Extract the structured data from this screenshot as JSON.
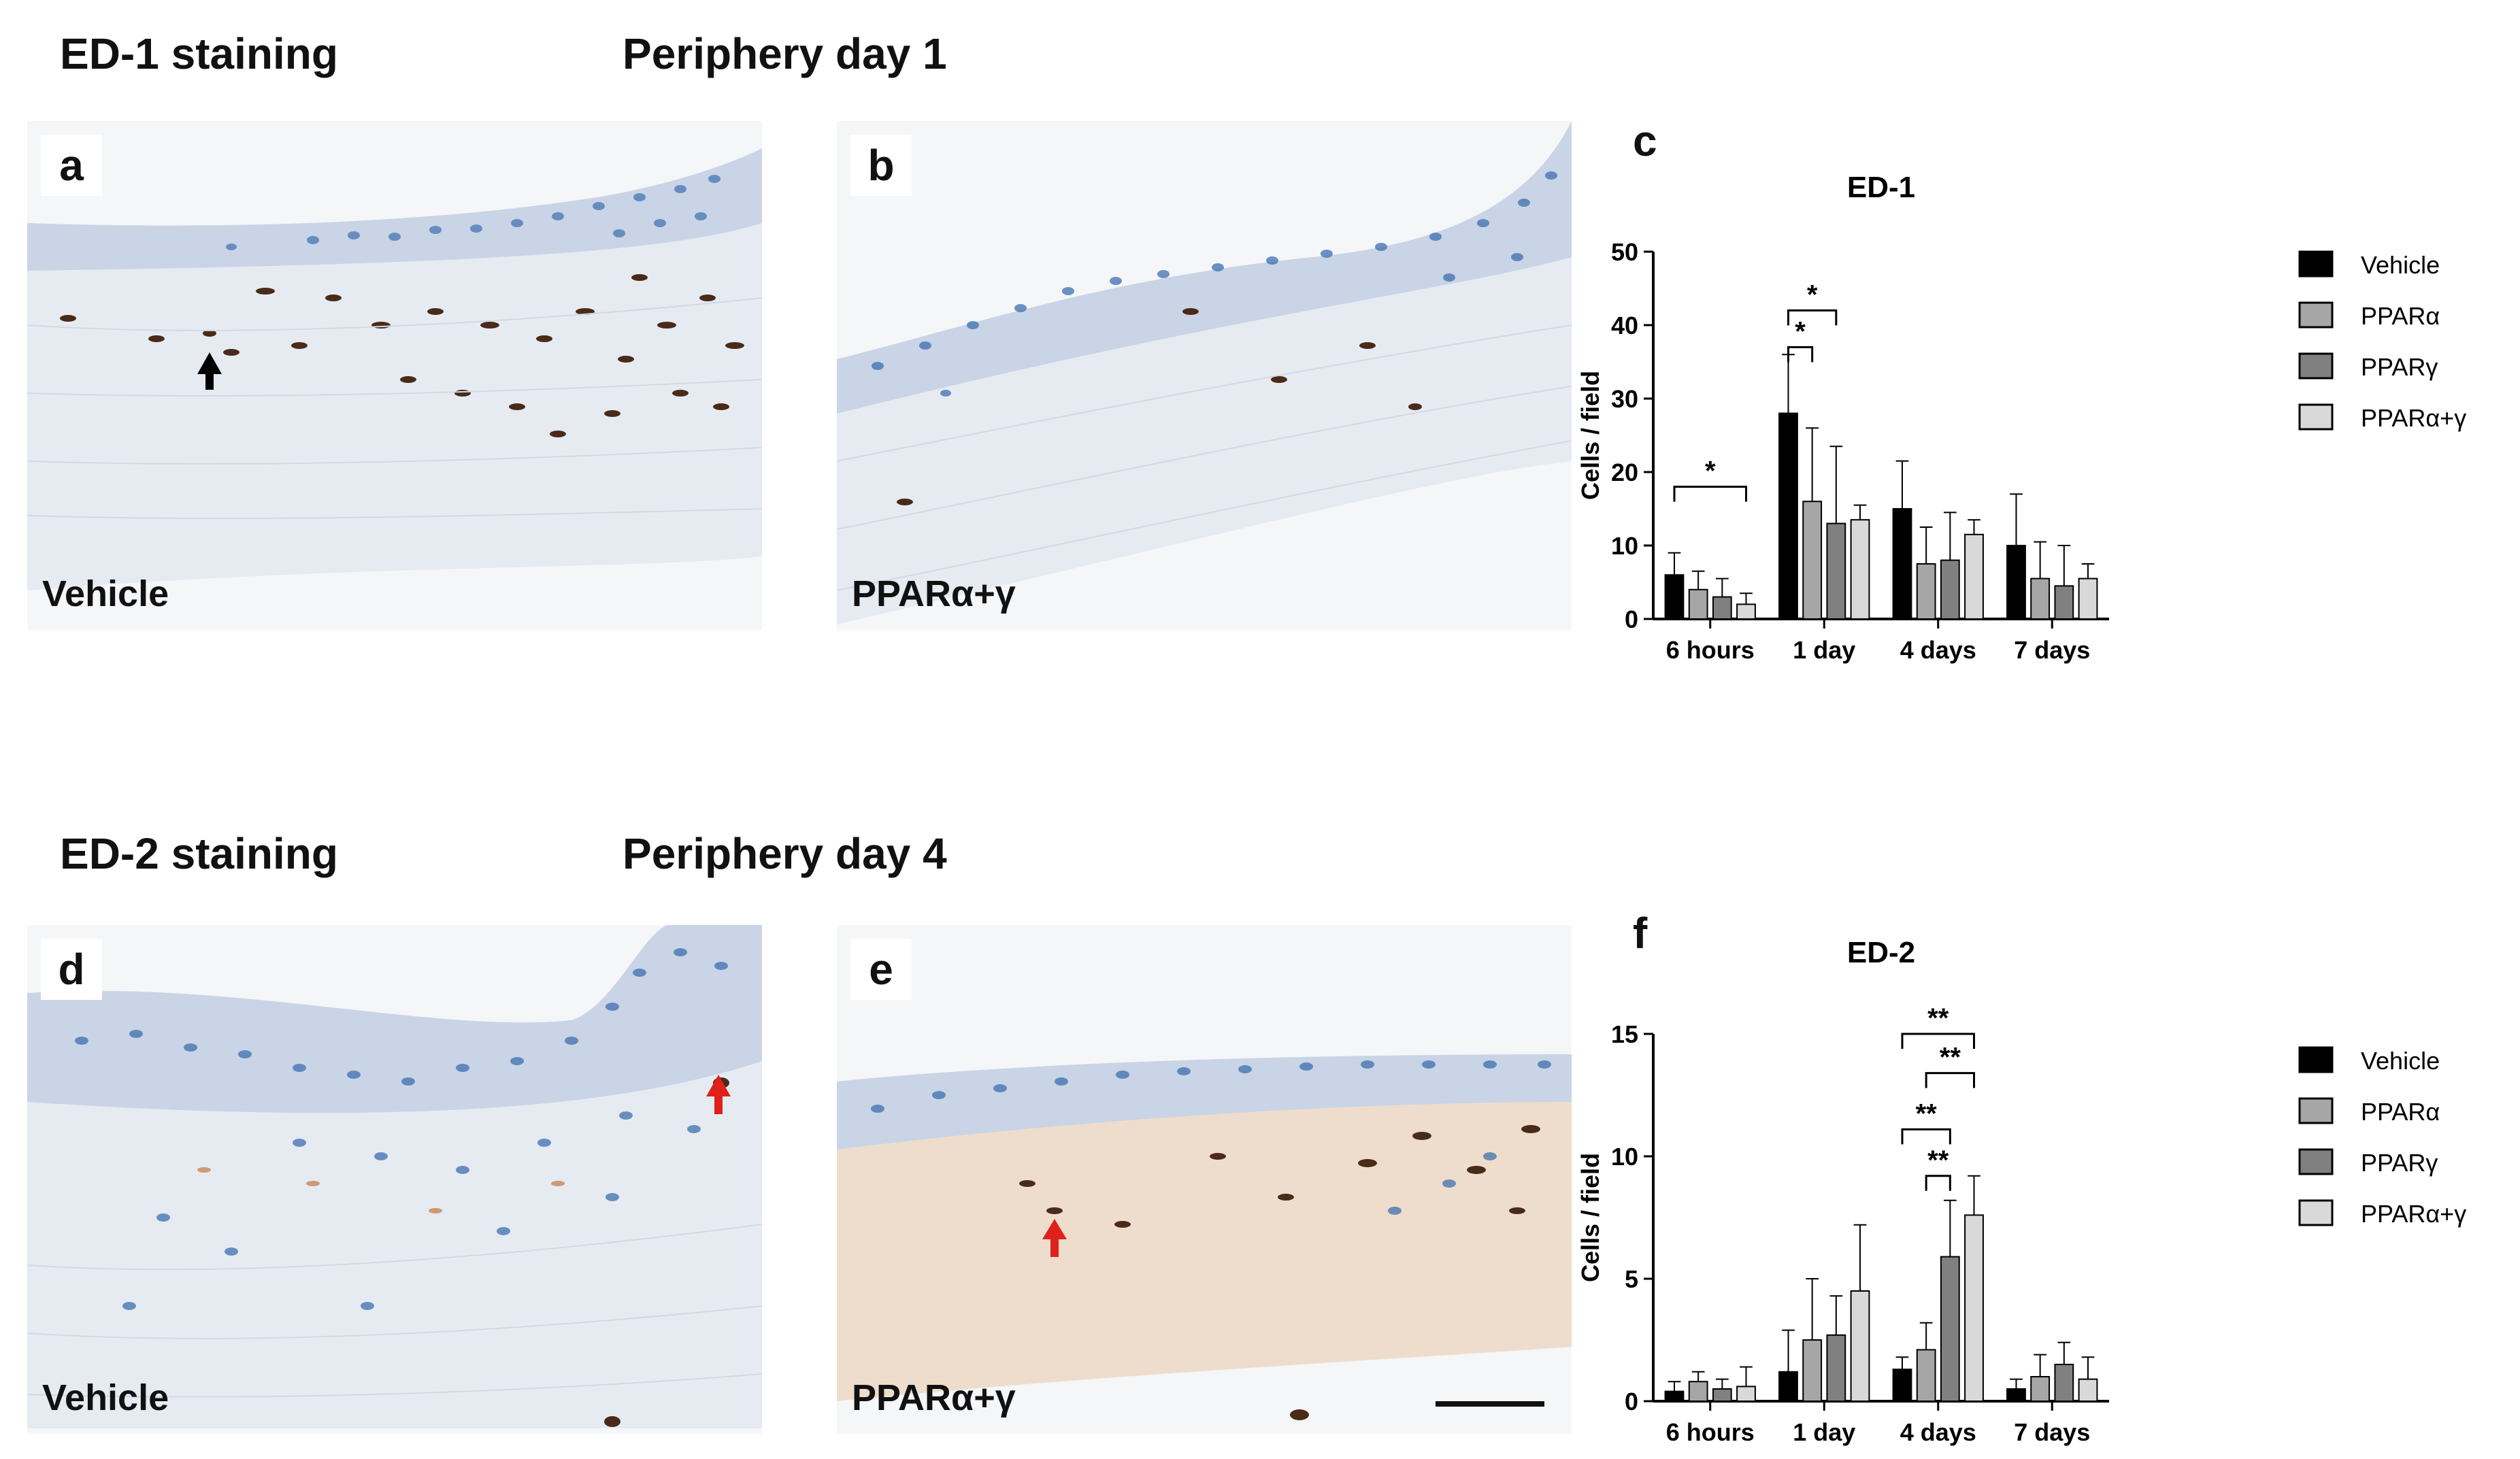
{
  "headers": {
    "ed1": "ED-1 staining",
    "day1": "Periphery day 1",
    "ed2": "ED-2 staining",
    "day4": "Periphery day 4"
  },
  "panels": {
    "a": {
      "letter": "a",
      "condition": "Vehicle"
    },
    "b": {
      "letter": "b",
      "condition": "PPARα+γ"
    },
    "d": {
      "letter": "d",
      "condition": "Vehicle"
    },
    "e": {
      "letter": "e",
      "condition": "PPARα+γ"
    }
  },
  "colors": {
    "vehicle": "#000000",
    "ppara": "#a6a6a6",
    "pparg": "#808080",
    "ppar_ag": "#d9d9d9",
    "tissue": "#e9edf3",
    "epithelium": "#c9d4e6",
    "nucleus_blue": "#3e6fb0",
    "nucleus_brown": "#4a2a18",
    "arrow_red": "#e0201b"
  },
  "chart_data": [
    {
      "panel_letter": "c",
      "type": "bar",
      "title": "ED-1",
      "xlabel": "",
      "ylabel": "Cells / field",
      "ylim": [
        0,
        50
      ],
      "yticks": [
        0,
        10,
        20,
        30,
        40,
        50
      ],
      "categories": [
        "6 hours",
        "1 day",
        "4 days",
        "7 days"
      ],
      "series": [
        {
          "name": "Vehicle",
          "values": [
            6,
            28,
            15,
            10
          ],
          "errors": [
            3,
            8,
            6.5,
            7
          ]
        },
        {
          "name": "PPARα",
          "values": [
            4,
            16,
            7.5,
            5.5
          ],
          "errors": [
            2.5,
            10,
            5,
            5
          ]
        },
        {
          "name": "PPARγ",
          "values": [
            3,
            13,
            8,
            4.5
          ],
          "errors": [
            2.5,
            10.5,
            6.5,
            5.5
          ]
        },
        {
          "name": "PPARα+γ",
          "values": [
            2,
            13.5,
            11.5,
            5.5
          ],
          "errors": [
            1.5,
            2,
            2,
            2
          ]
        }
      ],
      "significance": [
        {
          "label": "*",
          "category": 0,
          "from_series": 0,
          "to_series": 3,
          "y": 18
        },
        {
          "label": "*",
          "category": 1,
          "from_series": 0,
          "to_series": 2,
          "y": 42
        },
        {
          "label": "*",
          "category": 1,
          "from_series": 0,
          "to_series": 1,
          "y": 37
        }
      ],
      "legend_position": "right"
    },
    {
      "panel_letter": "f",
      "type": "bar",
      "title": "ED-2",
      "xlabel": "",
      "ylabel": "Cells / field",
      "ylim": [
        0,
        15
      ],
      "yticks": [
        0,
        5,
        10,
        15
      ],
      "categories": [
        "6 hours",
        "1 day",
        "4 days",
        "7 days"
      ],
      "series": [
        {
          "name": "Vehicle",
          "values": [
            0.4,
            1.2,
            1.3,
            0.5
          ],
          "errors": [
            0.4,
            1.7,
            0.5,
            0.4
          ]
        },
        {
          "name": "PPARα",
          "values": [
            0.8,
            2.5,
            2.1,
            1.0
          ],
          "errors": [
            0.4,
            2.5,
            1.1,
            0.9
          ]
        },
        {
          "name": "PPARγ",
          "values": [
            0.5,
            2.7,
            5.9,
            1.5
          ],
          "errors": [
            0.4,
            1.6,
            2.3,
            0.9
          ]
        },
        {
          "name": "PPARα+γ",
          "values": [
            0.6,
            4.5,
            7.6,
            0.9
          ],
          "errors": [
            0.8,
            2.7,
            1.6,
            0.9
          ]
        }
      ],
      "significance": [
        {
          "label": "**",
          "category": 2,
          "from_series": 0,
          "to_series": 3,
          "y": 15.0
        },
        {
          "label": "**",
          "category": 2,
          "from_series": 1,
          "to_series": 3,
          "y": 13.4
        },
        {
          "label": "**",
          "category": 2,
          "from_series": 0,
          "to_series": 2,
          "y": 11.1
        },
        {
          "label": "**",
          "category": 2,
          "from_series": 1,
          "to_series": 2,
          "y": 9.2
        }
      ],
      "legend_position": "right"
    }
  ]
}
